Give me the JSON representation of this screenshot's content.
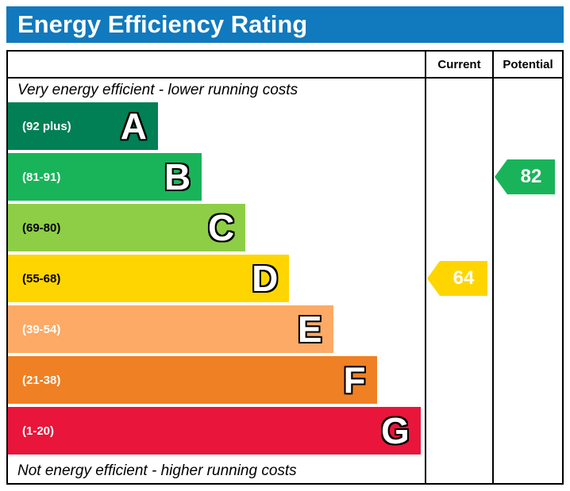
{
  "header": {
    "title": "Energy Efficiency Rating"
  },
  "table": {
    "current_label": "Current",
    "potential_label": "Potential"
  },
  "chart_data": {
    "type": "bar",
    "title": "Energy Efficiency Rating",
    "top_note": "Very energy efficient - lower running costs",
    "bottom_note": "Not energy efficient - higher running costs",
    "bands": [
      {
        "letter": "A",
        "range": "(92 plus)",
        "min": 92,
        "max": 100,
        "color": "#008054",
        "width_pct": 36,
        "range_text_color": "#ffffff"
      },
      {
        "letter": "B",
        "range": "(81-91)",
        "min": 81,
        "max": 91,
        "color": "#19b459",
        "width_pct": 46.5,
        "range_text_color": "#ffffff"
      },
      {
        "letter": "C",
        "range": "(69-80)",
        "min": 69,
        "max": 80,
        "color": "#8dce46",
        "width_pct": 57,
        "range_text_color": "#000000"
      },
      {
        "letter": "D",
        "range": "(55-68)",
        "min": 55,
        "max": 68,
        "color": "#ffd500",
        "width_pct": 67.5,
        "range_text_color": "#000000"
      },
      {
        "letter": "E",
        "range": "(39-54)",
        "min": 39,
        "max": 54,
        "color": "#fcaa65",
        "width_pct": 78,
        "range_text_color": "#ffffff"
      },
      {
        "letter": "F",
        "range": "(21-38)",
        "min": 21,
        "max": 38,
        "color": "#ef8023",
        "width_pct": 88.5,
        "range_text_color": "#ffffff"
      },
      {
        "letter": "G",
        "range": "(1-20)",
        "min": 1,
        "max": 20,
        "color": "#e9153b",
        "width_pct": 99,
        "range_text_color": "#ffffff"
      }
    ],
    "current": {
      "value": 64,
      "band": "D",
      "color": "#ffd500"
    },
    "potential": {
      "value": 82,
      "band": "B",
      "color": "#19b459"
    }
  }
}
